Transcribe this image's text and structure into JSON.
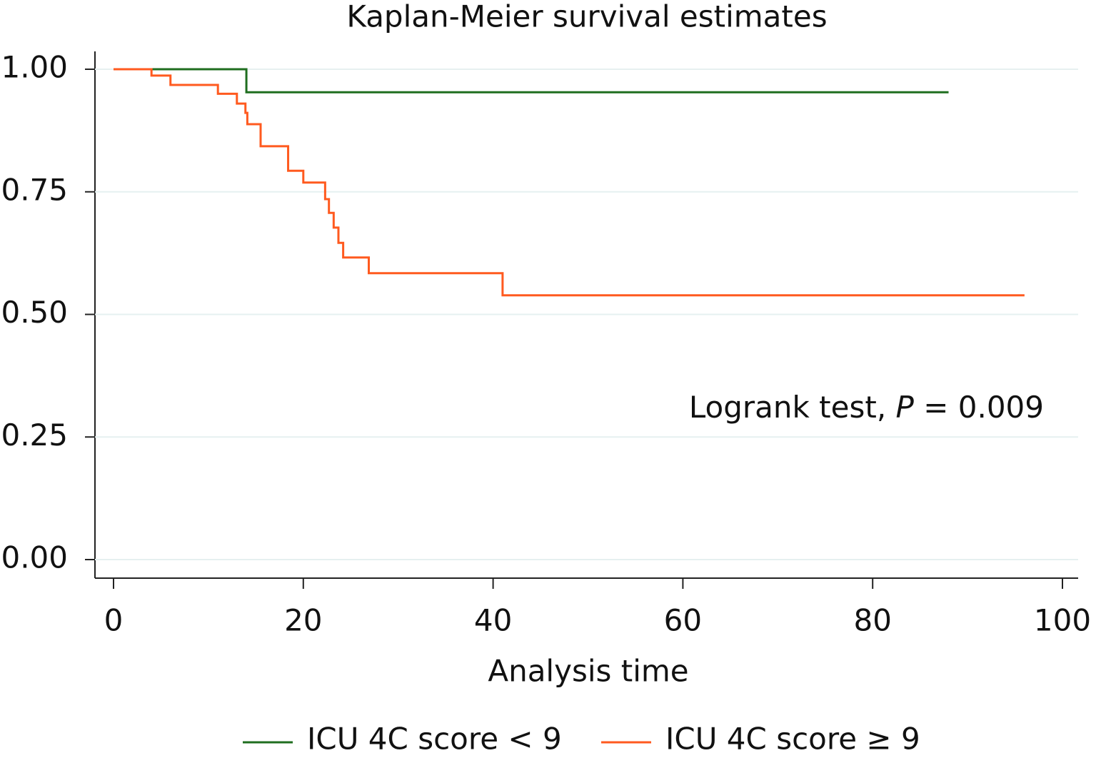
{
  "chart_data": {
    "type": "line",
    "drawstyle": "steps-post",
    "title": "Kaplan-Meier survival estimates",
    "xlabel": "Analysis time",
    "annotation": [
      "Logrank test, ",
      "P",
      " = 0.009"
    ],
    "xlim": [
      0,
      100
    ],
    "xticks": [
      0,
      20,
      40,
      60,
      80,
      100
    ],
    "ylim": [
      0,
      1
    ],
    "yticks": [
      {
        "value": 0,
        "label": "0.00"
      },
      {
        "value": 0.25,
        "label": "0.25"
      },
      {
        "value": 0.5,
        "label": "0.50"
      },
      {
        "value": 0.75,
        "label": "0.75"
      },
      {
        "value": 1,
        "label": "1.00"
      }
    ],
    "grid": true,
    "legend": "bottom",
    "series": [
      {
        "name": "ICU 4C score < 9",
        "color": "#1f6e1f",
        "x": [
          0,
          14,
          88
        ],
        "values": [
          1,
          0.953,
          0.953
        ]
      },
      {
        "name": "ICU 4C score ≥ 9",
        "color": "#ff5a1f",
        "x": [
          0,
          4,
          6,
          11,
          13,
          13.9,
          14.1,
          15.5,
          18.4,
          20,
          22.3,
          22.7,
          23.2,
          23.7,
          24.2,
          26.9,
          41,
          96
        ],
        "values": [
          1,
          0.987,
          0.968,
          0.95,
          0.93,
          0.911,
          0.888,
          0.843,
          0.793,
          0.769,
          0.735,
          0.707,
          0.677,
          0.646,
          0.616,
          0.584,
          0.539,
          0.539
        ]
      }
    ]
  }
}
